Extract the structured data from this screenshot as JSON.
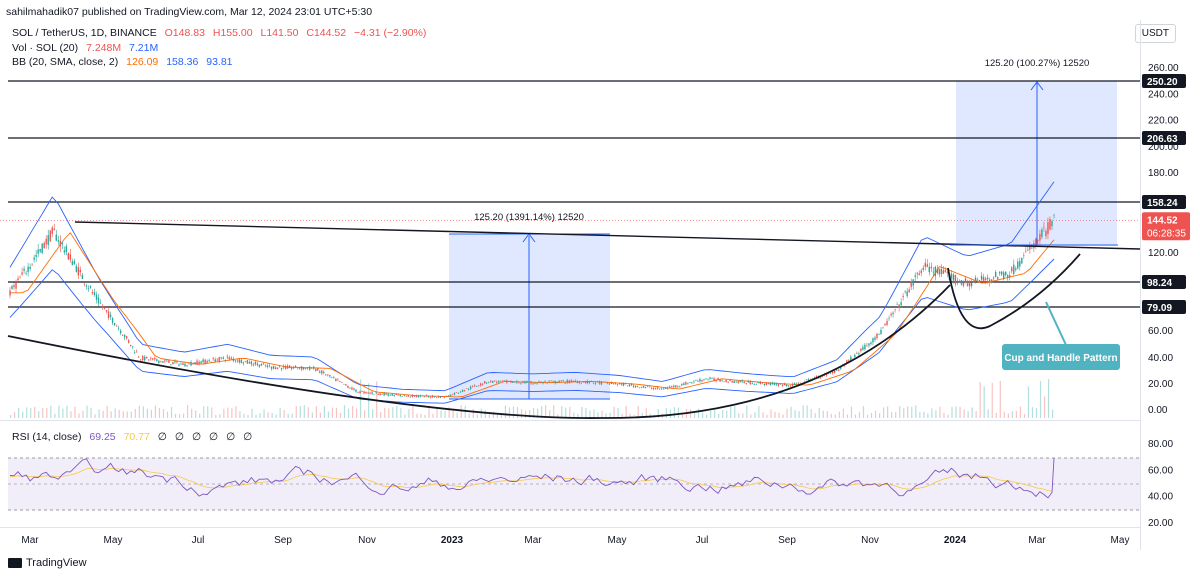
{
  "header": {
    "published": "sahilmahadik07 published on TradingView.com, Mar 12, 2024 23:01 UTC+5:30"
  },
  "legend": {
    "symbol": "SOL / TetherUS, 1D, BINANCE",
    "o": "O148.83",
    "h": "H155.00",
    "l": "L141.50",
    "c": "C144.52",
    "chg": "−4.31 (−2.90%)",
    "vol_label": "Vol · SOL (20)",
    "vol_a": "7.248M",
    "vol_b": "7.21M",
    "bb_label": "BB (20, SMA, close, 2)",
    "bb_basis": "126.09",
    "bb_upper": "158.36",
    "bb_lower": "93.81",
    "rsi_label": "RSI (14, close)",
    "rsi_val": "69.25",
    "rsi_ma": "70.77",
    "rsi_extra": [
      "∅",
      "∅",
      "∅",
      "∅",
      "∅",
      "∅"
    ]
  },
  "currency": "USDT",
  "branding": "TradingView",
  "colors": {
    "up": "#26a69a",
    "down": "#ef5350",
    "bb": "#2962ff",
    "basis": "#ff6d00",
    "rsi": "#7e57c2",
    "rsi_ma": "#f7c948",
    "box": "#2962ff",
    "callout": "#4fb3c2"
  },
  "chart_data": {
    "type": "candlestick",
    "symbol": "SOL / TetherUS",
    "timeframe": "1D",
    "x_ticks": [
      "Mar",
      "May",
      "Jul",
      "Sep",
      "Nov",
      "2023",
      "Mar",
      "May",
      "Jul",
      "Sep",
      "Nov",
      "2024",
      "Mar",
      "May"
    ],
    "y_ticks": [
      "260.00",
      "240.00",
      "220.00",
      "200.00",
      "180.00",
      "120.00",
      "60.00",
      "40.00",
      "20.00",
      "0.00"
    ],
    "price_tags": [
      "250.20",
      "206.63",
      "158.24",
      "98.24",
      "79.09"
    ],
    "horizontal_levels": [
      250.2,
      206.63,
      158.24,
      98.24,
      79.09
    ],
    "current_price": "144.52",
    "countdown": "06:28:35",
    "measure_labels": [
      "125.20 (1391.14%) 12520",
      "125.20 (100.27%) 12520"
    ],
    "annotation": "Cup and Handle Pattern",
    "series": [
      {
        "name": "SOL / TetherUS",
        "points": [
          [
            "Mar",
            90
          ],
          [
            "Apr",
            136
          ],
          [
            "May",
            85
          ],
          [
            "Jun",
            40
          ],
          [
            "Jul",
            35
          ],
          [
            "Aug",
            40
          ],
          [
            "Sep",
            33
          ],
          [
            "Oct",
            32
          ],
          [
            "Nov",
            14
          ],
          [
            "Dec",
            11
          ],
          [
            "2023",
            10
          ],
          [
            "Feb",
            22
          ],
          [
            "Mar",
            21
          ],
          [
            "Apr",
            22
          ],
          [
            "May",
            20
          ],
          [
            "Jun",
            16
          ],
          [
            "Jul",
            24
          ],
          [
            "Aug",
            21
          ],
          [
            "Sep",
            19
          ],
          [
            "Oct",
            30
          ],
          [
            "Nov",
            58
          ],
          [
            "Dec",
            110
          ],
          [
            "2024",
            97
          ],
          [
            "Feb",
            105
          ],
          [
            "Mar",
            144.52
          ]
        ]
      }
    ],
    "rsi": {
      "y_ticks": [
        "80.00",
        "60.00",
        "40.00",
        "20.00"
      ],
      "last": 69.25,
      "ma": 70.77
    }
  }
}
